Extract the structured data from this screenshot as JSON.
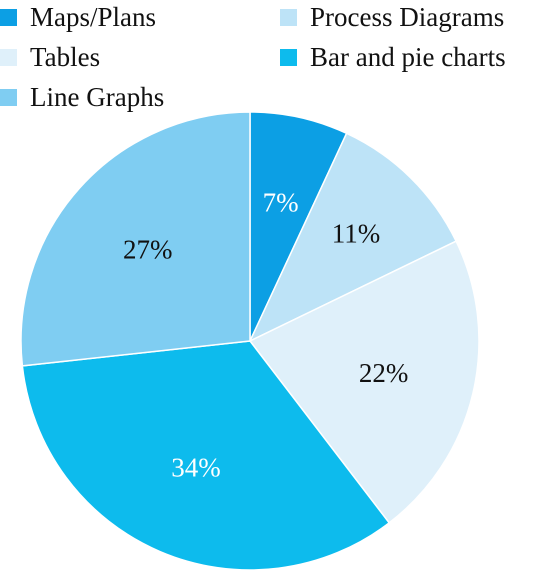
{
  "chart_data": {
    "type": "pie",
    "title": "",
    "start_angle_deg": 0,
    "direction": "clockwise",
    "legend_position": "top",
    "slices": [
      {
        "label": "Maps/Plans",
        "value": 7,
        "display": "7%",
        "color": "#0c9fe4",
        "label_color": "#ffffff"
      },
      {
        "label": "Process Diagrams",
        "value": 11,
        "display": "11%",
        "color": "#bde3f7",
        "label_color": "#111111"
      },
      {
        "label": "Tables",
        "value": 22,
        "display": "22%",
        "color": "#dff0fa",
        "label_color": "#111111"
      },
      {
        "label": "Bar and pie charts",
        "value": 34,
        "display": "34%",
        "color": "#0dbbed",
        "label_color": "#ffffff"
      },
      {
        "label": "Line Graphs",
        "value": 27,
        "display": "27%",
        "color": "#7fcdf2",
        "label_color": "#111111"
      }
    ]
  }
}
